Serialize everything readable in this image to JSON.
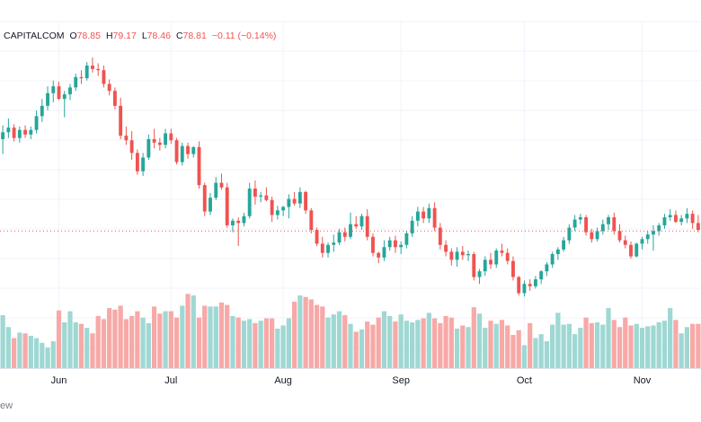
{
  "header": {
    "symbol": "CAPITALCOM",
    "open_label": "O",
    "open": "78.85",
    "high_label": "H",
    "high": "79.17",
    "low_label": "L",
    "low": "78.46",
    "close_label": "C",
    "close": "78.81",
    "change": "−0.11 (−0.14%)"
  },
  "footer": {
    "watermark": "ew"
  },
  "colors": {
    "up": "#26a69a",
    "down": "#ef5350",
    "up_volume": "#9fd8d3",
    "down_volume": "#f7a9a7",
    "grid": "#f0f3fa",
    "last_price_line": "#ef5350"
  },
  "chart_data": {
    "type": "candlestick",
    "x_tick_labels": [
      "Jun",
      "Jul",
      "Aug",
      "Sep",
      "Oct",
      "Nov"
    ],
    "x_tick_index": [
      10,
      30,
      50,
      71,
      93,
      114
    ],
    "price_ylim": [
      70,
      95
    ],
    "volume_ylim": [
      0,
      100
    ],
    "last_close": 78.81,
    "grid": true,
    "series": [
      {
        "name": "",
        "values": [
          [
            86.8,
            88.0,
            85.5,
            87.4,
            67
          ],
          [
            87.4,
            88.6,
            86.9,
            87.8,
            52
          ],
          [
            87.8,
            88.1,
            86.6,
            86.9,
            38
          ],
          [
            86.9,
            87.9,
            86.5,
            87.6,
            45
          ],
          [
            87.6,
            88.0,
            86.9,
            87.2,
            44
          ],
          [
            87.2,
            87.9,
            86.8,
            87.6,
            41
          ],
          [
            87.6,
            89.3,
            87.3,
            88.8,
            38
          ],
          [
            88.8,
            90.3,
            88.3,
            89.7,
            32
          ],
          [
            89.7,
            91.4,
            89.3,
            90.8,
            26
          ],
          [
            90.8,
            91.9,
            90.0,
            91.4,
            34
          ],
          [
            91.4,
            91.8,
            90.2,
            90.3,
            73
          ],
          [
            90.3,
            91.0,
            88.7,
            90.7,
            58
          ],
          [
            90.7,
            91.6,
            90.2,
            91.3,
            72
          ],
          [
            91.3,
            92.5,
            91.0,
            92.2,
            58
          ],
          [
            92.2,
            92.8,
            91.6,
            92.1,
            56
          ],
          [
            92.1,
            93.5,
            91.9,
            93.2,
            51
          ],
          [
            93.2,
            93.9,
            92.6,
            92.9,
            44
          ],
          [
            92.9,
            93.4,
            92.3,
            92.8,
            66
          ],
          [
            92.8,
            93.2,
            91.3,
            91.6,
            62
          ],
          [
            91.6,
            92.0,
            90.6,
            91.0,
            76
          ],
          [
            91.0,
            91.3,
            89.4,
            89.7,
            74
          ],
          [
            89.7,
            90.4,
            86.8,
            87.1,
            79
          ],
          [
            87.1,
            87.9,
            86.3,
            86.7,
            62
          ],
          [
            86.7,
            87.5,
            85.0,
            85.6,
            66
          ],
          [
            85.6,
            85.9,
            83.7,
            84.0,
            72
          ],
          [
            84.0,
            85.6,
            83.6,
            85.2,
            64
          ],
          [
            85.2,
            87.2,
            85.0,
            86.8,
            57
          ],
          [
            86.8,
            87.7,
            86.0,
            86.5,
            78
          ],
          [
            86.5,
            86.9,
            85.8,
            86.3,
            69
          ],
          [
            86.3,
            87.7,
            86.0,
            87.3,
            72
          ],
          [
            87.3,
            87.7,
            86.4,
            86.7,
            72
          ],
          [
            86.7,
            86.9,
            84.6,
            84.8,
            64
          ],
          [
            84.8,
            86.5,
            84.5,
            86.2,
            79
          ],
          [
            86.2,
            86.5,
            85.1,
            85.5,
            94
          ],
          [
            85.5,
            86.2,
            85.2,
            86.1,
            92
          ],
          [
            86.1,
            86.6,
            82.5,
            82.8,
            64
          ],
          [
            82.8,
            83.0,
            80.1,
            80.5,
            79
          ],
          [
            80.5,
            82.1,
            80.2,
            81.7,
            78
          ],
          [
            81.7,
            83.5,
            81.5,
            83.0,
            78
          ],
          [
            83.0,
            83.8,
            82.4,
            82.6,
            83
          ],
          [
            82.6,
            83.0,
            79.1,
            79.3,
            80
          ],
          [
            79.3,
            79.9,
            78.7,
            79.7,
            66
          ],
          [
            79.7,
            80.0,
            77.5,
            79.5,
            64
          ],
          [
            79.5,
            80.4,
            79.2,
            80.1,
            60
          ],
          [
            80.1,
            83.0,
            79.9,
            82.5,
            62
          ],
          [
            82.5,
            83.2,
            81.1,
            81.8,
            57
          ],
          [
            81.8,
            82.2,
            81.3,
            81.9,
            60
          ],
          [
            81.9,
            82.6,
            81.4,
            81.5,
            63
          ],
          [
            81.5,
            81.8,
            79.6,
            80.2,
            63
          ],
          [
            80.2,
            81.0,
            79.8,
            80.6,
            50
          ],
          [
            80.6,
            81.0,
            80.1,
            80.9,
            54
          ],
          [
            80.9,
            82.0,
            79.9,
            81.6,
            63
          ],
          [
            81.6,
            82.2,
            81.0,
            81.2,
            84
          ],
          [
            81.2,
            82.6,
            80.8,
            82.2,
            92
          ],
          [
            82.2,
            82.3,
            80.3,
            80.6,
            90
          ],
          [
            80.6,
            80.8,
            78.6,
            78.9,
            87
          ],
          [
            78.9,
            79.1,
            77.5,
            77.7,
            80
          ],
          [
            77.7,
            78.3,
            76.5,
            76.9,
            78
          ],
          [
            76.9,
            77.8,
            76.5,
            77.6,
            64
          ],
          [
            77.6,
            78.5,
            77.0,
            77.8,
            68
          ],
          [
            77.8,
            79.0,
            77.6,
            78.7,
            72
          ],
          [
            78.7,
            79.1,
            77.9,
            78.3,
            67
          ],
          [
            78.3,
            80.4,
            78.1,
            79.4,
            56
          ],
          [
            79.4,
            80.1,
            79.0,
            79.2,
            46
          ],
          [
            79.2,
            80.3,
            78.9,
            80.1,
            49
          ],
          [
            80.1,
            80.7,
            78.0,
            78.3,
            59
          ],
          [
            78.3,
            78.6,
            76.6,
            76.9,
            55
          ],
          [
            76.9,
            77.0,
            76.0,
            76.5,
            64
          ],
          [
            76.5,
            78.0,
            76.2,
            77.4,
            72
          ],
          [
            77.4,
            78.3,
            77.1,
            78.0,
            66
          ],
          [
            78.0,
            78.4,
            76.9,
            77.4,
            59
          ],
          [
            77.4,
            77.9,
            76.8,
            77.6,
            68
          ],
          [
            77.6,
            78.8,
            77.3,
            78.6,
            60
          ],
          [
            78.6,
            80.1,
            78.3,
            79.7,
            58
          ],
          [
            79.7,
            80.9,
            79.2,
            80.5,
            61
          ],
          [
            80.5,
            80.9,
            79.5,
            79.9,
            63
          ],
          [
            79.9,
            81.2,
            79.5,
            80.8,
            70
          ],
          [
            80.8,
            81.3,
            78.8,
            79.1,
            63
          ],
          [
            79.1,
            79.5,
            77.2,
            77.6,
            57
          ],
          [
            77.6,
            78.0,
            76.6,
            77.0,
            66
          ],
          [
            77.0,
            77.3,
            75.8,
            76.3,
            64
          ],
          [
            76.3,
            77.4,
            75.7,
            77.0,
            50
          ],
          [
            77.0,
            77.5,
            76.3,
            76.7,
            54
          ],
          [
            76.7,
            77.1,
            76.2,
            76.8,
            52
          ],
          [
            76.8,
            77.0,
            74.5,
            74.8,
            77
          ],
          [
            74.8,
            75.5,
            74.2,
            75.3,
            69
          ],
          [
            75.3,
            76.6,
            74.9,
            76.3,
            51
          ],
          [
            76.3,
            76.9,
            75.5,
            75.9,
            60
          ],
          [
            75.9,
            77.3,
            75.6,
            77.1,
            56
          ],
          [
            77.1,
            77.7,
            76.6,
            76.9,
            61
          ],
          [
            76.9,
            77.3,
            75.9,
            76.2,
            54
          ],
          [
            76.2,
            76.6,
            74.5,
            74.8,
            42
          ],
          [
            74.8,
            74.9,
            73.2,
            73.4,
            48
          ],
          [
            73.4,
            74.5,
            73.1,
            74.2,
            29
          ],
          [
            74.2,
            74.6,
            73.6,
            74.0,
            57
          ],
          [
            74.0,
            74.9,
            73.8,
            74.6,
            38
          ],
          [
            74.6,
            75.4,
            74.2,
            75.3,
            43
          ],
          [
            75.3,
            76.1,
            74.9,
            75.9,
            34
          ],
          [
            75.9,
            77.0,
            75.6,
            76.8,
            55
          ],
          [
            76.8,
            77.4,
            76.3,
            77.2,
            70
          ],
          [
            77.2,
            78.3,
            77.0,
            78.0,
            55
          ],
          [
            78.0,
            79.4,
            77.7,
            79.1,
            56
          ],
          [
            79.1,
            80.2,
            78.8,
            79.8,
            43
          ],
          [
            79.8,
            80.3,
            79.4,
            80.0,
            51
          ],
          [
            80.0,
            80.2,
            78.4,
            78.7,
            64
          ],
          [
            78.7,
            79.0,
            77.8,
            78.1,
            57
          ],
          [
            78.1,
            79.1,
            77.9,
            78.8,
            58
          ],
          [
            78.8,
            79.8,
            78.5,
            79.4,
            55
          ],
          [
            79.4,
            80.2,
            78.9,
            80.0,
            76
          ],
          [
            80.0,
            80.4,
            78.5,
            78.8,
            61
          ],
          [
            78.8,
            79.4,
            77.8,
            78.0,
            52
          ],
          [
            78.0,
            78.4,
            77.3,
            77.6,
            64
          ],
          [
            77.6,
            77.9,
            76.4,
            76.6,
            54
          ],
          [
            76.6,
            77.8,
            76.5,
            77.7,
            56
          ],
          [
            77.7,
            78.3,
            77.2,
            78.1,
            51
          ],
          [
            78.1,
            78.8,
            77.7,
            78.5,
            53
          ],
          [
            78.5,
            79.3,
            77.1,
            78.8,
            54
          ],
          [
            78.8,
            79.5,
            78.4,
            79.3,
            58
          ],
          [
            79.3,
            80.3,
            79.0,
            80.0,
            60
          ],
          [
            80.0,
            80.7,
            79.7,
            80.2,
            76
          ],
          [
            80.2,
            80.6,
            79.5,
            79.6,
            61
          ],
          [
            79.6,
            80.2,
            79.3,
            79.9,
            44
          ],
          [
            79.9,
            80.8,
            79.5,
            80.3,
            52
          ],
          [
            80.3,
            80.6,
            79.0,
            79.5,
            56
          ],
          [
            79.5,
            80.2,
            78.7,
            78.9,
            56
          ]
        ]
      }
    ]
  }
}
